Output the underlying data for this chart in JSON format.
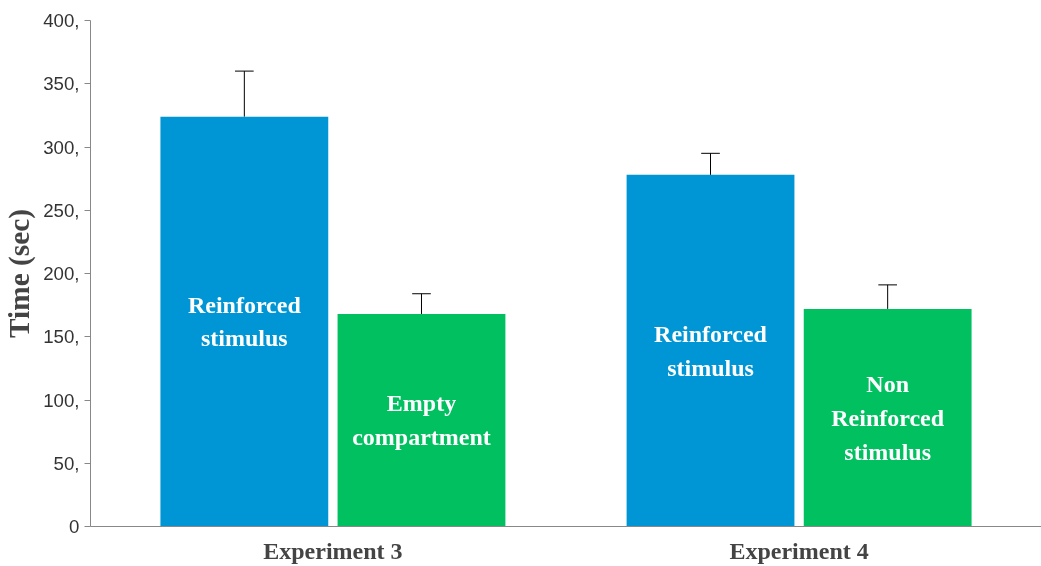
{
  "chart_data": {
    "type": "bar",
    "ylabel": "Time (sec)",
    "categories": [
      "Experiment 3",
      "Experiment 4"
    ],
    "series": [
      {
        "color": "#0096d6",
        "values": [
          324,
          278
        ],
        "errors": [
          [
            324,
            360
          ],
          [
            278,
            295
          ]
        ]
      },
      {
        "color": "#00c060",
        "values": [
          168,
          172
        ],
        "errors": [
          [
            168,
            184
          ],
          [
            172,
            191
          ]
        ]
      }
    ],
    "ylim": [
      0,
      400
    ],
    "yticks": [
      0,
      {
        "value": 50,
        "label": "50,"
      },
      {
        "value": 100,
        "label": "100,"
      },
      {
        "value": 150,
        "label": "150,"
      },
      {
        "value": 200,
        "label": "200,"
      },
      {
        "value": 250,
        "label": "250,"
      },
      {
        "value": 300,
        "label": "300,"
      },
      {
        "value": 350,
        "label": "350,"
      },
      {
        "value": 400,
        "label": "400,"
      }
    ],
    "annotations": [
      "Reinforced\nstimulus",
      "Empty\ncompartment",
      "Reinforced\nstimulus",
      "Non\nReinforced\nstimulus"
    ],
    "grid": false
  }
}
